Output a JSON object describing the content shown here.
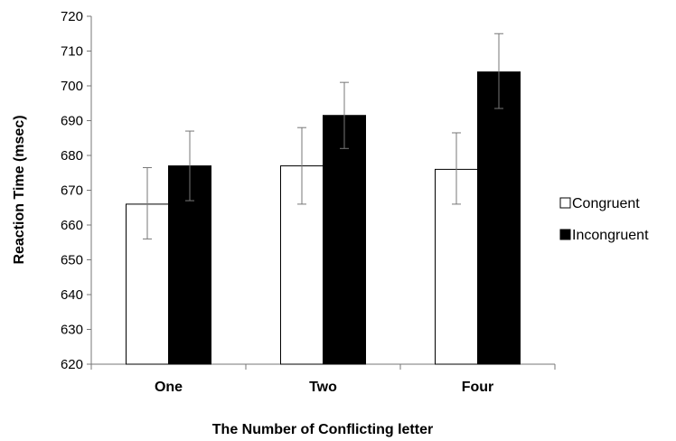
{
  "chart_data": {
    "type": "bar",
    "title": "",
    "xlabel": "The Number of Conflicting letter",
    "ylabel": "Reaction Time (msec)",
    "categories": [
      "One",
      "Two",
      "Four"
    ],
    "ylim": [
      620,
      720
    ],
    "yticks": [
      620,
      630,
      640,
      650,
      660,
      670,
      680,
      690,
      700,
      710,
      720
    ],
    "grid": false,
    "legend_position": "right",
    "series": [
      {
        "name": "Congruent",
        "color": "#ffffff",
        "values": [
          666,
          677,
          676
        ],
        "error_low": [
          656,
          666,
          666
        ],
        "error_high": [
          676.5,
          688,
          686.5
        ]
      },
      {
        "name": "Incongruent",
        "color": "#000000",
        "values": [
          677,
          691.5,
          704
        ],
        "error_low": [
          667,
          682,
          693.5
        ],
        "error_high": [
          687,
          701,
          715
        ]
      }
    ]
  }
}
